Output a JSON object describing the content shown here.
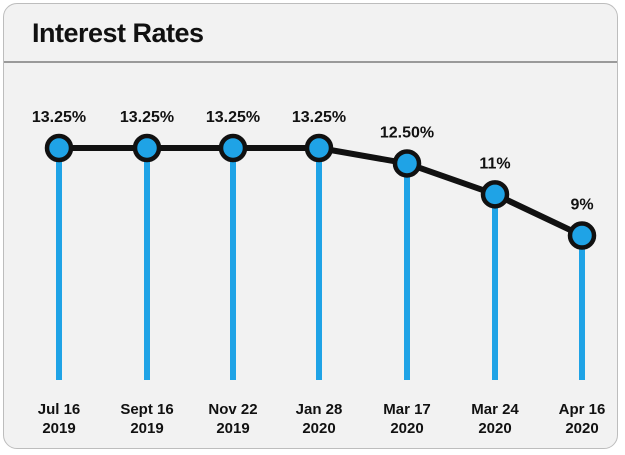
{
  "chart_data": {
    "type": "line",
    "title": "Interest Rates",
    "categories": [
      [
        "Jul 16",
        "2019"
      ],
      [
        "Sept 16",
        "2019"
      ],
      [
        "Nov 22",
        "2019"
      ],
      [
        "Jan 28",
        "2020"
      ],
      [
        "Mar 17",
        "2020"
      ],
      [
        "Mar 24",
        "2020"
      ],
      [
        "Apr 16",
        "2020"
      ]
    ],
    "values": [
      13.25,
      13.25,
      13.25,
      13.25,
      12.5,
      11,
      9
    ],
    "value_labels": [
      "13.25%",
      "13.25%",
      "13.25%",
      "13.25%",
      "12.50%",
      "11%",
      "9%"
    ],
    "ylim": [
      0,
      13.25
    ],
    "grid": false,
    "legend": "none",
    "colors": {
      "line": "#111111",
      "marker_fill": "#1fa3e6",
      "drop_line": "#1fa3e6",
      "card_background": "#f2f2f2"
    }
  }
}
